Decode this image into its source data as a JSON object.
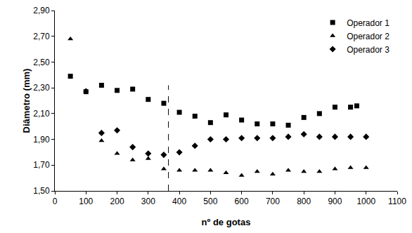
{
  "chart_data": {
    "type": "scatter",
    "x_label": "nº de gotas",
    "y_label": "Diâmetro (mm)",
    "xlim": [
      0,
      1100
    ],
    "xticks": [
      0,
      100,
      200,
      300,
      400,
      500,
      600,
      700,
      800,
      900,
      1000,
      1100
    ],
    "ylim": [
      1.5,
      2.9
    ],
    "yticks": [
      {
        "value": 1.5,
        "label": "1,50"
      },
      {
        "value": 1.7,
        "label": "1,70"
      },
      {
        "value": 1.9,
        "label": "1,90"
      },
      {
        "value": 2.1,
        "label": "2,10"
      },
      {
        "value": 2.3,
        "label": "2,30"
      },
      {
        "value": 2.5,
        "label": "2,50"
      },
      {
        "value": 2.7,
        "label": "2,70"
      },
      {
        "value": 2.9,
        "label": "2,90"
      }
    ],
    "grid": false,
    "legend": "upper right",
    "reference_line": {
      "x": 365,
      "ymin": 1.5,
      "ymax": 2.32,
      "line_style": "dashed"
    },
    "series": [
      {
        "name": "Operador 1",
        "color": "#000000",
        "marker": "square",
        "x": [
          50,
          100,
          150,
          200,
          250,
          300,
          350,
          400,
          450,
          500,
          550,
          600,
          650,
          700,
          750,
          800,
          850,
          900,
          950,
          970
        ],
        "values": [
          2.39,
          2.27,
          2.32,
          2.28,
          2.29,
          2.21,
          2.18,
          2.11,
          2.08,
          2.03,
          2.09,
          2.05,
          2.02,
          2.02,
          2.01,
          2.07,
          2.1,
          2.15,
          2.15,
          2.16
        ]
      },
      {
        "name": "Operador 2",
        "color": "#000000",
        "marker": "triangle-up",
        "x": [
          50,
          100,
          150,
          200,
          250,
          300,
          350,
          400,
          450,
          500,
          550,
          600,
          650,
          700,
          750,
          800,
          850,
          900,
          950,
          1000
        ],
        "values": [
          2.68,
          2.28,
          1.89,
          1.79,
          1.74,
          1.75,
          1.67,
          1.66,
          1.66,
          1.66,
          1.64,
          1.62,
          1.65,
          1.63,
          1.66,
          1.65,
          1.65,
          1.67,
          1.68,
          1.68
        ]
      },
      {
        "name": "Operador 3",
        "color": "#000000",
        "marker": "diamond",
        "x": [
          150,
          200,
          250,
          300,
          350,
          400,
          450,
          500,
          550,
          600,
          650,
          700,
          750,
          800,
          850,
          900,
          950,
          1000
        ],
        "values": [
          1.95,
          1.97,
          1.84,
          1.79,
          1.78,
          1.8,
          1.85,
          1.9,
          1.9,
          1.91,
          1.91,
          1.91,
          1.92,
          1.94,
          1.92,
          1.92,
          1.92,
          1.92
        ]
      }
    ]
  }
}
